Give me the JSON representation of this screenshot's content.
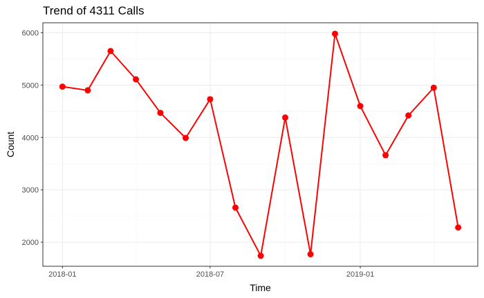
{
  "chart_data": {
    "type": "line",
    "title": "Trend of 4311 Calls",
    "xlabel": "Time",
    "ylabel": "Count",
    "x": [
      "2018-01-01",
      "2018-02-01",
      "2018-03-01",
      "2018-04-01",
      "2018-05-01",
      "2018-06-01",
      "2018-07-01",
      "2018-08-01",
      "2018-09-01",
      "2018-10-01",
      "2018-11-01",
      "2018-12-01",
      "2019-01-01",
      "2019-02-01",
      "2019-03-01",
      "2019-04-01",
      "2019-05-01"
    ],
    "series": [
      {
        "values": [
          4970,
          4900,
          5650,
          5110,
          4470,
          3990,
          4730,
          2660,
          1740,
          4380,
          1770,
          5980,
          4600,
          3660,
          4420,
          4950,
          2280
        ]
      }
    ],
    "x_ticks": [
      {
        "date": "2018-01-01",
        "label": "2018-01"
      },
      {
        "date": "2018-07-01",
        "label": "2018-07"
      },
      {
        "date": "2019-01-01",
        "label": "2019-01"
      }
    ],
    "y_ticks": [
      2000,
      3000,
      4000,
      5000,
      6000
    ],
    "xlim": [
      "2017-12-08",
      "2019-05-25"
    ],
    "ylim": [
      1540,
      6190
    ],
    "grid": true,
    "line_color": "#ff0000",
    "panel_border_color": "#333333",
    "grid_major_color": "#ebebeb",
    "grid_minor_color": "#f4f4f4"
  }
}
